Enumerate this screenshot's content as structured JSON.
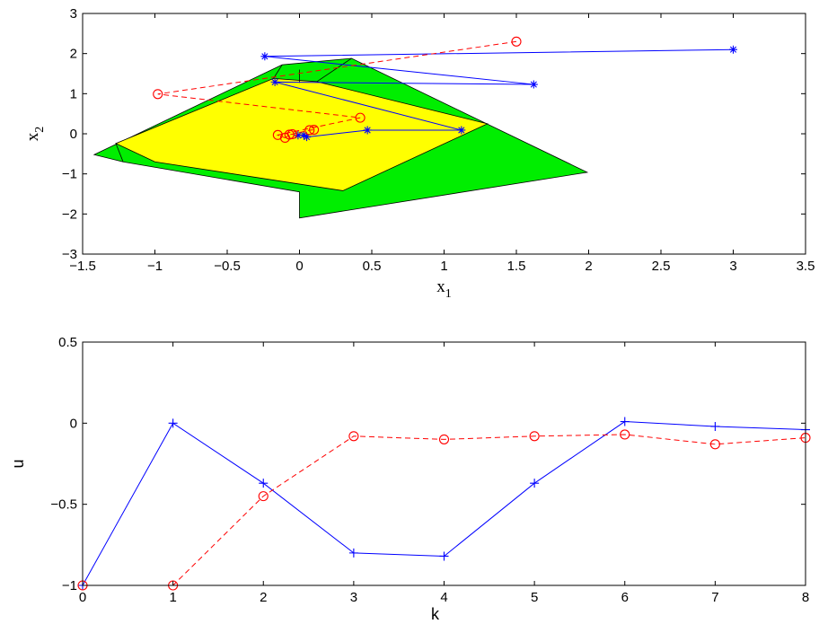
{
  "chart_data": [
    {
      "type": "line",
      "xlabel": "x",
      "xlabel_sub": "1",
      "ylabel": "x",
      "ylabel_sub": "2",
      "xlim": [
        -1.5,
        3.5
      ],
      "ylim": [
        -3,
        3
      ],
      "xticks": [
        -1.5,
        -1,
        -0.5,
        0,
        0.5,
        1,
        1.5,
        2,
        2.5,
        3,
        3.5
      ],
      "xtick_labels": [
        "−1.5",
        "−1",
        "−0.5",
        "0",
        "0.5",
        "1",
        "1.5",
        "2",
        "2.5",
        "3",
        "3.5"
      ],
      "yticks": [
        -3,
        -2,
        -1,
        0,
        1,
        2,
        3
      ],
      "ytick_labels": [
        "−3",
        "−2",
        "−1",
        "0",
        "1",
        "2",
        "3"
      ],
      "grid": false,
      "regions": [
        {
          "fill": "#00ee00",
          "points": [
            [
              -1.42,
              -0.52
            ],
            [
              -0.12,
              1.72
            ],
            [
              0.36,
              1.88
            ],
            [
              1.3,
              0.24
            ],
            [
              1.99,
              -0.96
            ],
            [
              0.0,
              -2.1
            ],
            [
              0.0,
              -1.45
            ],
            [
              -1.22,
              -0.7
            ]
          ]
        },
        {
          "fill": "#ffff00",
          "points": [
            [
              -1.27,
              -0.24
            ],
            [
              -0.18,
              1.38
            ],
            [
              0.12,
              1.3
            ],
            [
              1.3,
              0.25
            ],
            [
              0.3,
              -1.42
            ],
            [
              -1.0,
              -0.7
            ]
          ]
        }
      ],
      "extra_edges": [
        [
          [
            -1.22,
            -0.7
          ],
          [
            -1.27,
            -0.24
          ]
        ],
        [
          [
            -0.12,
            1.72
          ],
          [
            -0.18,
            1.38
          ]
        ],
        [
          [
            0.36,
            1.88
          ],
          [
            0.12,
            1.3
          ]
        ],
        [
          [
            0.0,
            1.6
          ],
          [
            0.0,
            1.27
          ]
        ]
      ],
      "series": [
        {
          "color": "#0000ff",
          "line": "solid",
          "marker": "asterisk",
          "points": [
            [
              3.0,
              2.1
            ],
            [
              -0.24,
              1.93
            ],
            [
              1.62,
              1.23
            ],
            [
              -0.17,
              1.29
            ],
            [
              1.12,
              0.09
            ],
            [
              0.47,
              0.09
            ],
            [
              0.05,
              -0.08
            ],
            [
              0.03,
              -0.03
            ],
            [
              -0.01,
              -0.04
            ]
          ]
        },
        {
          "color": "#ff0000",
          "line": "dashed",
          "marker": "circle",
          "points": [
            [
              1.5,
              2.3
            ],
            [
              -0.98,
              0.99
            ],
            [
              0.42,
              0.4
            ],
            [
              -0.15,
              -0.03
            ],
            [
              -0.1,
              -0.1
            ],
            [
              -0.07,
              -0.02
            ],
            [
              -0.05,
              -0.01
            ],
            [
              0.07,
              0.09
            ],
            [
              0.1,
              0.1
            ]
          ]
        }
      ]
    },
    {
      "type": "line",
      "xlabel": "k",
      "ylabel": "u",
      "xlim": [
        0,
        8
      ],
      "ylim": [
        -1,
        0.5
      ],
      "xticks": [
        0,
        1,
        2,
        3,
        4,
        5,
        6,
        7,
        8
      ],
      "xtick_labels": [
        "0",
        "1",
        "2",
        "3",
        "4",
        "5",
        "6",
        "7",
        "8"
      ],
      "yticks": [
        -1,
        -0.5,
        0,
        0.5
      ],
      "ytick_labels": [
        "−1",
        "−0.5",
        "0",
        "0.5"
      ],
      "grid": false,
      "x": [
        0,
        1,
        2,
        3,
        4,
        5,
        6,
        7,
        8
      ],
      "series": [
        {
          "color": "#0000ff",
          "line": "solid",
          "marker": "plus",
          "values": [
            -1.0,
            0.0,
            -0.37,
            -0.8,
            -0.82,
            -0.37,
            0.01,
            -0.02,
            -0.04
          ]
        },
        {
          "color": "#ff0000",
          "line": "dashed",
          "marker": "circle",
          "values": [
            -1.0,
            -1.0,
            -0.45,
            -0.08,
            -0.1,
            -0.08,
            -0.07,
            -0.13,
            -0.09
          ]
        }
      ]
    }
  ]
}
